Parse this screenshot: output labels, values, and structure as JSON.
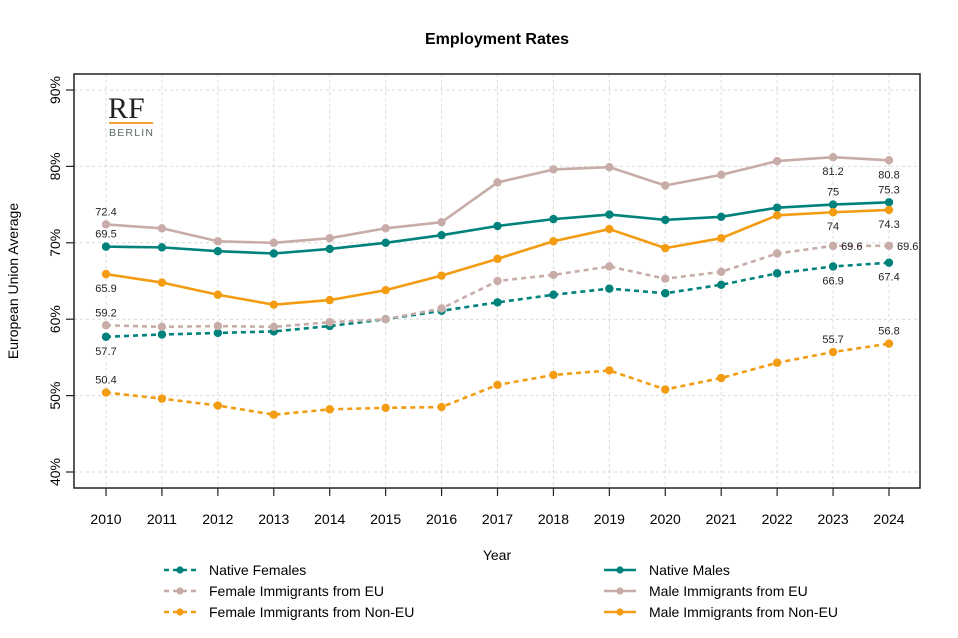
{
  "chart_data": {
    "type": "line",
    "title": "Employment Rates",
    "xlabel": "Year",
    "ylabel": "European Union Average",
    "x": [
      2010,
      2011,
      2012,
      2013,
      2014,
      2015,
      2016,
      2017,
      2018,
      2019,
      2020,
      2021,
      2022,
      2023,
      2024
    ],
    "x_tick_labels": [
      "2010",
      "2011",
      "2012",
      "2013",
      "2014",
      "2015",
      "2016",
      "2017",
      "2018",
      "2019",
      "2020",
      "2021",
      "2022",
      "2023",
      "2024"
    ],
    "ylim": [
      38.1,
      92.2
    ],
    "y_ticks": [
      40,
      50,
      60,
      70,
      80,
      90
    ],
    "y_tick_labels": [
      "40%",
      "50%",
      "60%",
      "70%",
      "80%",
      "90%"
    ],
    "grid": true,
    "legend_position": "bottom",
    "series": [
      {
        "name": "Native Females",
        "color": "#00827c",
        "style": "dashed",
        "values": [
          57.7,
          58.0,
          58.2,
          58.4,
          59.1,
          60.0,
          61.1,
          62.2,
          63.2,
          64.0,
          63.4,
          64.5,
          66.0,
          66.9,
          67.4
        ],
        "labels": {
          "0": {
            "text": "57.7",
            "pos": "below"
          },
          "13": {
            "text": "66.9",
            "pos": "below"
          },
          "14": {
            "text": "67.4",
            "pos": "below"
          }
        }
      },
      {
        "name": "Female Immigrants from EU",
        "color": "#c8aca8",
        "style": "dashed",
        "values": [
          59.2,
          59.0,
          59.1,
          59.0,
          59.6,
          60.0,
          61.4,
          65.0,
          65.8,
          66.9,
          65.3,
          66.2,
          68.6,
          69.6,
          69.6
        ],
        "labels": {
          "0": {
            "text": "59.2",
            "pos": "above"
          },
          "13": {
            "text": "69.6",
            "pos": "right"
          },
          "14": {
            "text": "69.6",
            "pos": "right"
          }
        }
      },
      {
        "name": "Female Immigrants from Non-EU",
        "color": "#f39c12",
        "style": "dashed",
        "values": [
          50.4,
          49.6,
          48.7,
          47.5,
          48.2,
          48.4,
          48.5,
          51.4,
          52.7,
          53.3,
          50.8,
          52.3,
          54.3,
          55.7,
          56.8
        ],
        "labels": {
          "0": {
            "text": "50.4",
            "pos": "above"
          },
          "13": {
            "text": "55.7",
            "pos": "above"
          },
          "14": {
            "text": "56.8",
            "pos": "above"
          }
        }
      },
      {
        "name": "Native Males",
        "color": "#00827c",
        "style": "solid",
        "values": [
          69.5,
          69.4,
          68.9,
          68.6,
          69.2,
          70.0,
          71.0,
          72.2,
          73.1,
          73.7,
          73.0,
          73.4,
          74.6,
          75.0,
          75.3
        ],
        "labels": {
          "0": {
            "text": "69.5",
            "pos": "above"
          },
          "13": {
            "text": "75",
            "pos": "above"
          },
          "14": {
            "text": "75.3",
            "pos": "above"
          }
        }
      },
      {
        "name": "Male Immigrants from EU",
        "color": "#c8aca8",
        "style": "solid",
        "values": [
          72.4,
          71.9,
          70.2,
          70.0,
          70.6,
          71.9,
          72.7,
          77.9,
          79.6,
          79.9,
          77.5,
          78.9,
          80.7,
          81.2,
          80.8
        ],
        "labels": {
          "0": {
            "text": "72.4",
            "pos": "above"
          },
          "13": {
            "text": "81.2",
            "pos": "below"
          },
          "14": {
            "text": "80.8",
            "pos": "below"
          }
        }
      },
      {
        "name": "Male Immigrants from Non-EU",
        "color": "#f39c12",
        "style": "solid",
        "values": [
          65.9,
          64.8,
          63.2,
          61.9,
          62.5,
          63.8,
          65.7,
          67.9,
          70.2,
          71.8,
          69.3,
          70.6,
          73.6,
          74.0,
          74.3
        ],
        "labels": {
          "0": {
            "text": "65.9",
            "pos": "below"
          },
          "13": {
            "text": "74",
            "pos": "below"
          },
          "14": {
            "text": "74.3",
            "pos": "below"
          }
        }
      }
    ]
  },
  "logo": {
    "main": "RF",
    "sub": "BERLIN",
    "accent_color": "#f0a431"
  }
}
